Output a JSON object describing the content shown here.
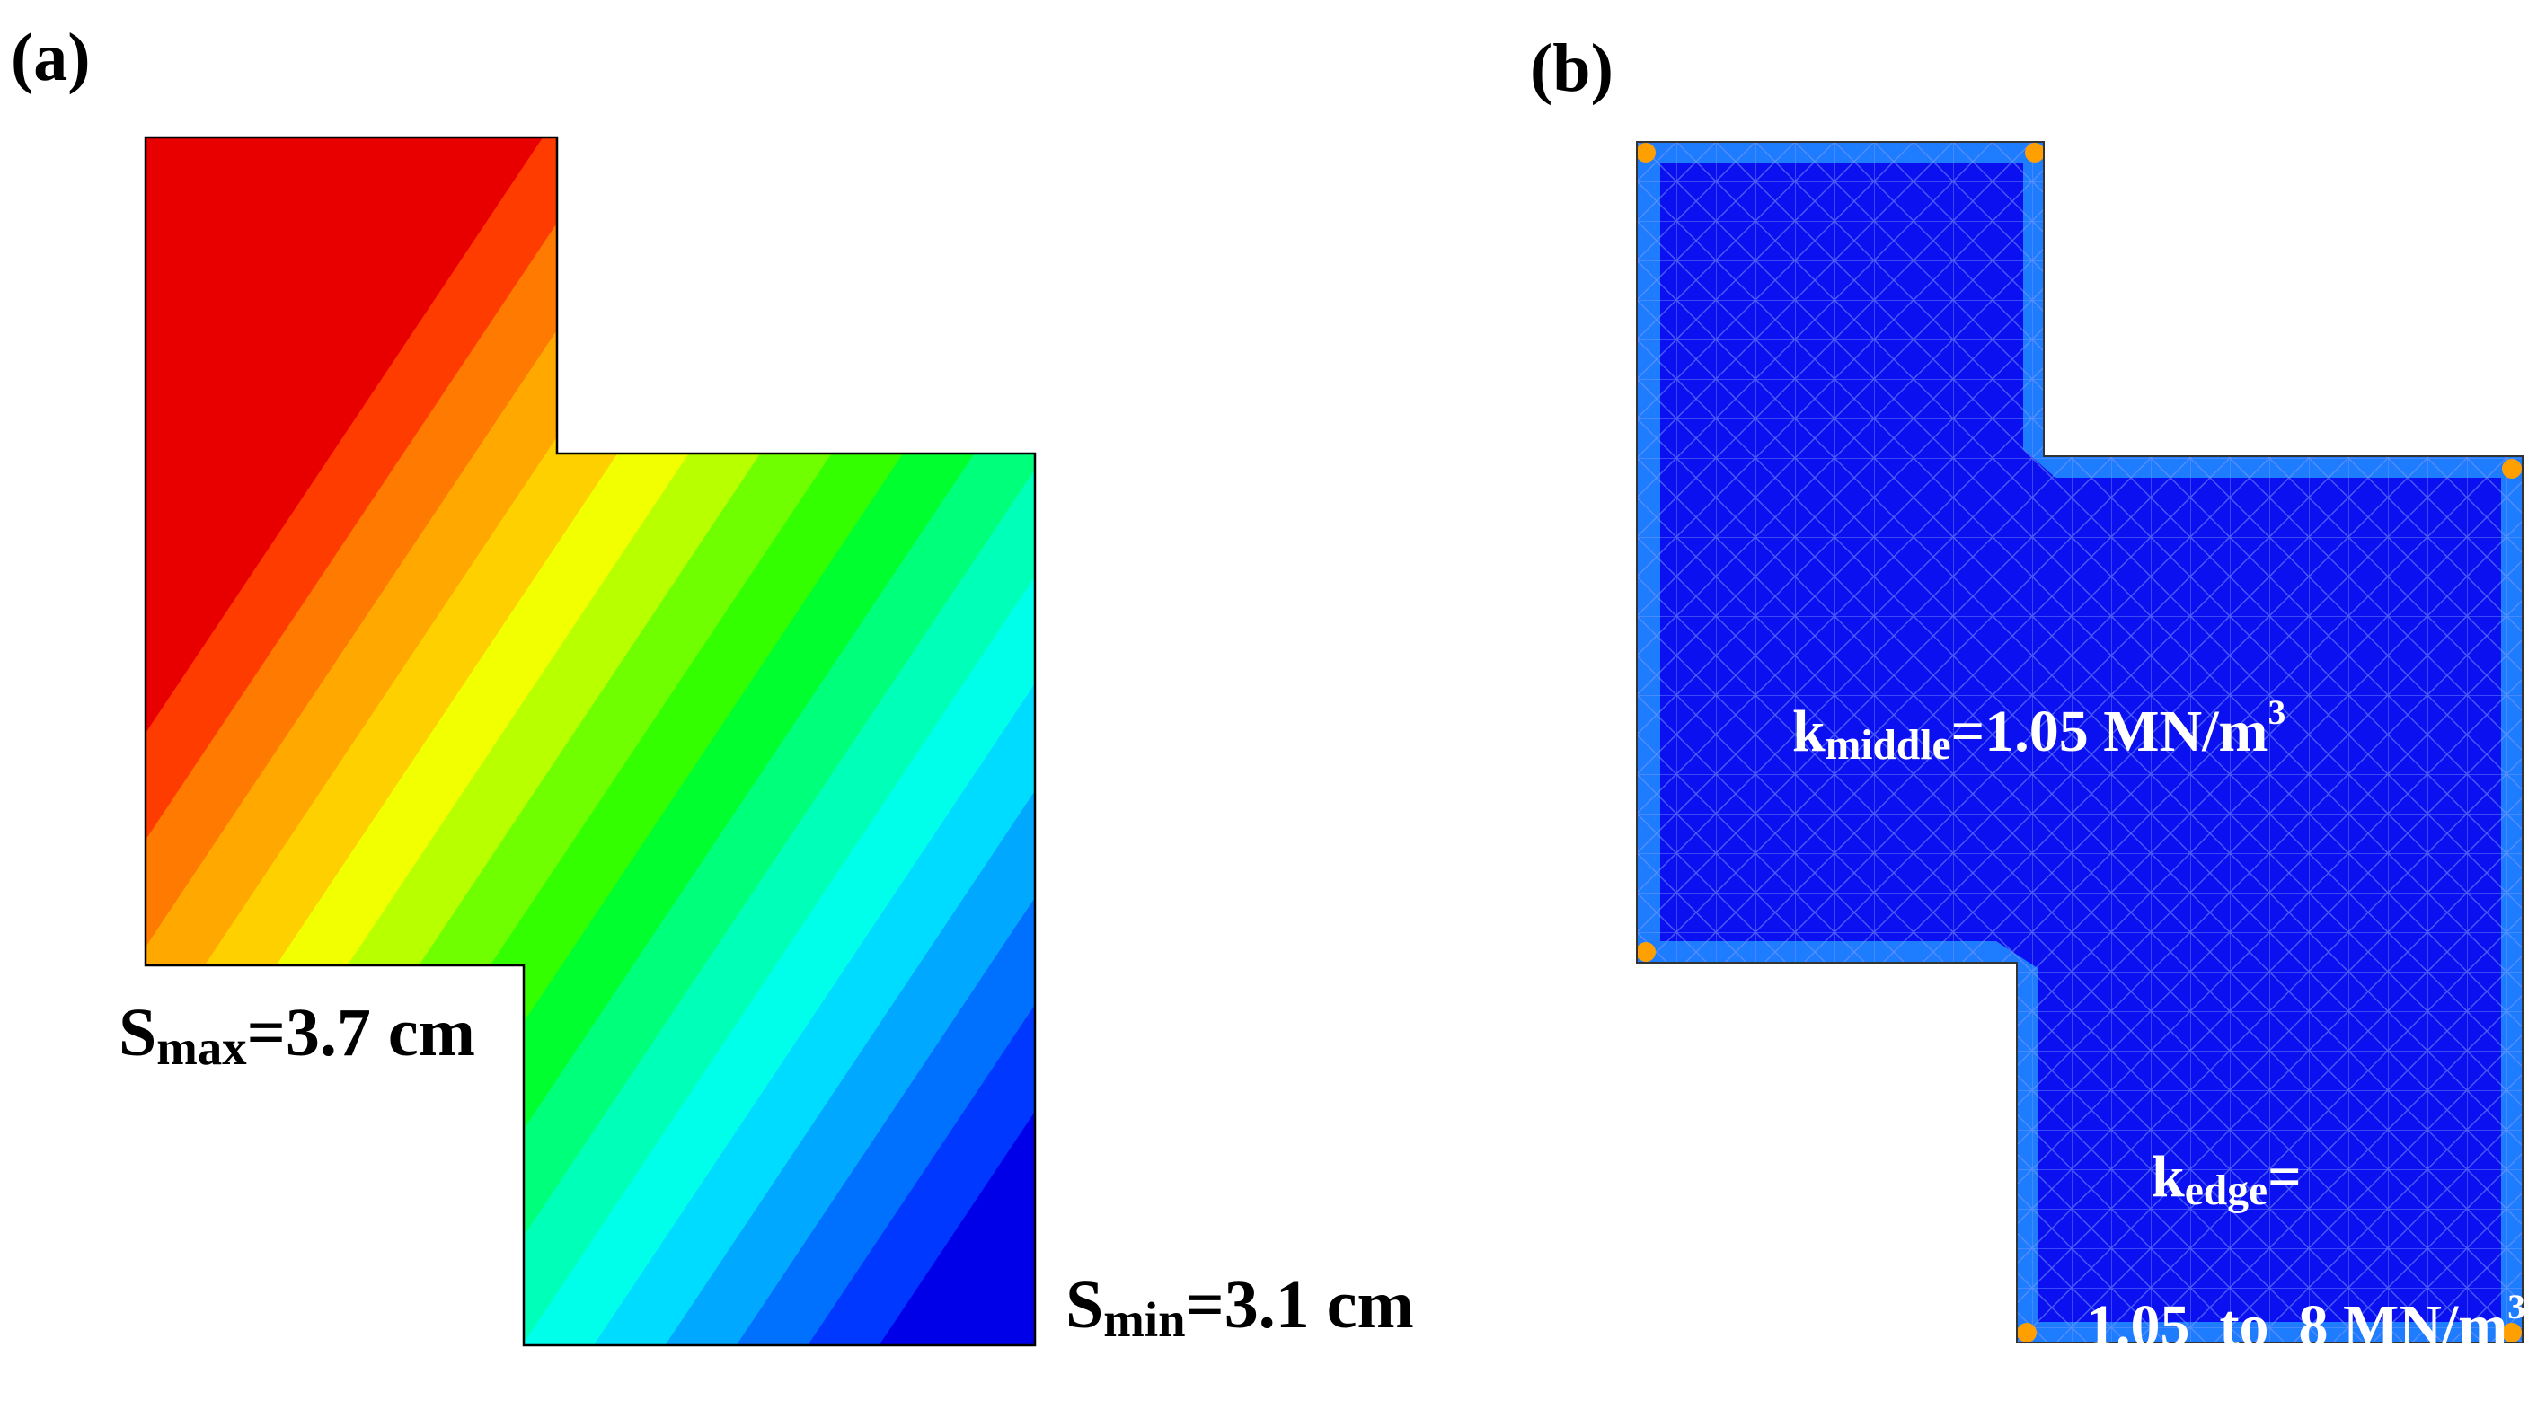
{
  "panels": {
    "a": {
      "label": "(a)",
      "smax": {
        "symbol": "S",
        "sub": "max",
        "value": "=3.7 cm"
      },
      "smin": {
        "symbol": "S",
        "sub": "min",
        "value": "=3.1 cm"
      },
      "colormap": [
        "#e80000",
        "#ff3c00",
        "#ff7a00",
        "#ffa800",
        "#ffd000",
        "#f2ff00",
        "#b8ff00",
        "#70ff00",
        "#34ff00",
        "#00ff2e",
        "#00ff7a",
        "#00ffb8",
        "#00ffea",
        "#00dcff",
        "#00a8ff",
        "#0070ff",
        "#0038ff",
        "#0000e8"
      ]
    },
    "b": {
      "label": "(b)",
      "k_middle": {
        "symbol": "k",
        "sub": "middle",
        "value": "=1.05 MN/m",
        "sup": "3"
      },
      "k_edge_line1": {
        "symbol": "k",
        "sub": "edge",
        "value": "="
      },
      "k_edge_line2": {
        "value": "1.05  to  8 MN/m",
        "sup": "3"
      },
      "colors": {
        "fill": "#0a10f0",
        "edge": "#1e7cff",
        "corner": "#ffa000"
      }
    }
  }
}
